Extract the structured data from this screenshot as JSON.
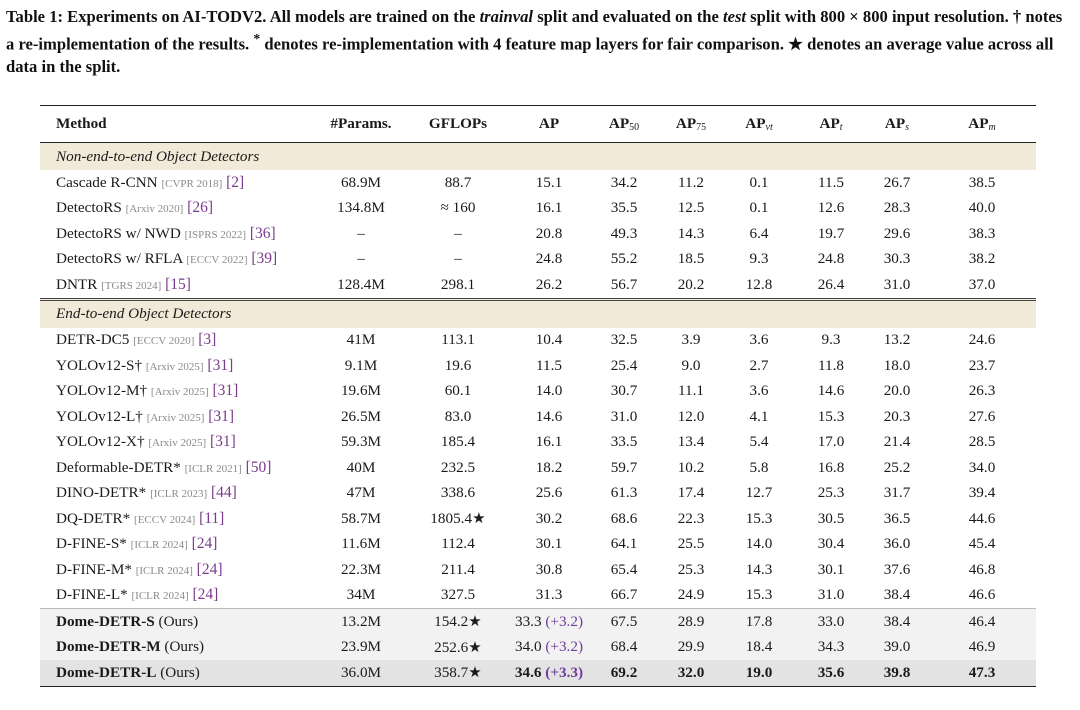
{
  "caption": {
    "part1": "Table 1: Experiments on AI-TODV2. All models are trained on the ",
    "split_train": "trainval",
    "part2": " split and evaluated on the ",
    "split_test": "test",
    "part3": " split with 800 × 800 input resolution. † notes a re-implementation of the results. ",
    "star_mark": "*",
    "part4": " denotes re-implementation with 4 feature map layers for fair comparison. ",
    "avg_mark": "★",
    "part5": " denotes an average value across all data in the split."
  },
  "header": {
    "method": "Method",
    "params": "#Params.",
    "gflops": "GFLOPs",
    "ap": "AP",
    "ap50_base": "AP",
    "ap50_sub": "50",
    "ap75_base": "AP",
    "ap75_sub": "75",
    "apvt_base": "AP",
    "apvt_sub": "vt",
    "apt_base": "AP",
    "apt_sub": "t",
    "aps_base": "AP",
    "aps_sub": "s",
    "apm_base": "AP",
    "apm_sub": "m"
  },
  "sections": {
    "non_end_to_end": "Non-end-to-end Object Detectors",
    "end_to_end": "End-to-end Object Detectors"
  },
  "rows": [
    {
      "method": "Cascade R-CNN",
      "venue": "[CVPR 2018]",
      "ref": "[2]",
      "params": "68.9M",
      "gflops": "88.7",
      "ap": "15.1",
      "ap50": "34.2",
      "ap75": "11.2",
      "apvt": "0.1",
      "apt": "11.5",
      "aps": "26.7",
      "apm": "38.5"
    },
    {
      "method": "DetectoRS",
      "venue": "[Arxiv 2020]",
      "ref": "[26]",
      "params": "134.8M",
      "gflops": "≈ 160",
      "ap": "16.1",
      "ap50": "35.5",
      "ap75": "12.5",
      "apvt": "0.1",
      "apt": "12.6",
      "aps": "28.3",
      "apm": "40.0"
    },
    {
      "method": "DetectoRS w/ NWD",
      "venue": "[ISPRS 2022]",
      "ref": "[36]",
      "params": "–",
      "gflops": "–",
      "ap": "20.8",
      "ap50": "49.3",
      "ap75": "14.3",
      "apvt": "6.4",
      "apt": "19.7",
      "aps": "29.6",
      "apm": "38.3"
    },
    {
      "method": "DetectoRS w/ RFLA",
      "venue": "[ECCV 2022]",
      "ref": "[39]",
      "params": "–",
      "gflops": "–",
      "ap": "24.8",
      "ap50": "55.2",
      "ap75": "18.5",
      "apvt": "9.3",
      "apt": "24.8",
      "aps": "30.3",
      "apm": "38.2"
    },
    {
      "method": "DNTR",
      "venue": "[TGRS 2024]",
      "ref": "[15]",
      "params": "128.4M",
      "gflops": "298.1",
      "ap": "26.2",
      "ap50": "56.7",
      "ap75": "20.2",
      "apvt": "12.8",
      "apt": "26.4",
      "aps": "31.0",
      "apm": "37.0"
    },
    {
      "method": "DETR-DC5",
      "venue": "[ECCV 2020]",
      "ref": "[3]",
      "params": "41M",
      "gflops": "113.1",
      "ap": "10.4",
      "ap50": "32.5",
      "ap75": "3.9",
      "apvt": "3.6",
      "apt": "9.3",
      "aps": "13.2",
      "apm": "24.6"
    },
    {
      "method": "YOLOv12-S†",
      "venue": "[Arxiv 2025]",
      "ref": "[31]",
      "params": "9.1M",
      "gflops": "19.6",
      "ap": "11.5",
      "ap50": "25.4",
      "ap75": "9.0",
      "apvt": "2.7",
      "apt": "11.8",
      "aps": "18.0",
      "apm": "23.7"
    },
    {
      "method": "YOLOv12-M†",
      "venue": "[Arxiv 2025]",
      "ref": "[31]",
      "params": "19.6M",
      "gflops": "60.1",
      "ap": "14.0",
      "ap50": "30.7",
      "ap75": "11.1",
      "apvt": "3.6",
      "apt": "14.6",
      "aps": "20.0",
      "apm": "26.3"
    },
    {
      "method": "YOLOv12-L†",
      "venue": "[Arxiv 2025]",
      "ref": "[31]",
      "params": "26.5M",
      "gflops": "83.0",
      "ap": "14.6",
      "ap50": "31.0",
      "ap75": "12.0",
      "apvt": "4.1",
      "apt": "15.3",
      "aps": "20.3",
      "apm": "27.6"
    },
    {
      "method": "YOLOv12-X†",
      "venue": "[Arxiv 2025]",
      "ref": "[31]",
      "params": "59.3M",
      "gflops": "185.4",
      "ap": "16.1",
      "ap50": "33.5",
      "ap75": "13.4",
      "apvt": "5.4",
      "apt": "17.0",
      "aps": "21.4",
      "apm": "28.5"
    },
    {
      "method": "Deformable-DETR*",
      "venue": "[ICLR 2021]",
      "ref": "[50]",
      "params": "40M",
      "gflops": "232.5",
      "ap": "18.2",
      "ap50": "59.7",
      "ap75": "10.2",
      "apvt": "5.8",
      "apt": "16.8",
      "aps": "25.2",
      "apm": "34.0"
    },
    {
      "method": "DINO-DETR*",
      "venue": "[ICLR 2023]",
      "ref": "[44]",
      "params": "47M",
      "gflops": "338.6",
      "ap": "25.6",
      "ap50": "61.3",
      "ap75": "17.4",
      "apvt": "12.7",
      "apt": "25.3",
      "aps": "31.7",
      "apm": "39.4"
    },
    {
      "method": "DQ-DETR*",
      "venue": "[ECCV 2024]",
      "ref": "[11]",
      "params": "58.7M",
      "gflops": "1805.4★",
      "ap": "30.2",
      "ap50": "68.6",
      "ap75": "22.3",
      "apvt": "15.3",
      "apt": "30.5",
      "aps": "36.5",
      "apm": "44.6"
    },
    {
      "method": "D-FINE-S*",
      "venue": "[ICLR 2024]",
      "ref": "[24]",
      "params": "11.6M",
      "gflops": "112.4",
      "ap": "30.1",
      "ap50": "64.1",
      "ap75": "25.5",
      "apvt": "14.0",
      "apt": "30.4",
      "aps": "36.0",
      "apm": "45.4"
    },
    {
      "method": "D-FINE-M*",
      "venue": "[ICLR 2024]",
      "ref": "[24]",
      "params": "22.3M",
      "gflops": "211.4",
      "ap": "30.8",
      "ap50": "65.4",
      "ap75": "25.3",
      "apvt": "14.3",
      "apt": "30.1",
      "aps": "37.6",
      "apm": "46.8"
    },
    {
      "method": "D-FINE-L*",
      "venue": "[ICLR 2024]",
      "ref": "[24]",
      "params": "34M",
      "gflops": "327.5",
      "ap": "31.3",
      "ap50": "66.7",
      "ap75": "24.9",
      "apvt": "15.3",
      "apt": "31.0",
      "aps": "38.4",
      "apm": "46.6"
    }
  ],
  "ours": [
    {
      "method": "Dome-DETR-S",
      "suffix": " (Ours)",
      "params": "13.2M",
      "gflops": "154.2★",
      "ap": "33.3",
      "delta": "(+3.2)",
      "ap50": "67.5",
      "ap75": "28.9",
      "apvt": "17.8",
      "apt": "33.0",
      "aps": "38.4",
      "apm": "46.4"
    },
    {
      "method": "Dome-DETR-M",
      "suffix": " (Ours)",
      "params": "23.9M",
      "gflops": "252.6★",
      "ap": "34.0",
      "delta": "(+3.2)",
      "ap50": "68.4",
      "ap75": "29.9",
      "apvt": "18.4",
      "apt": "34.3",
      "aps": "39.0",
      "apm": "46.9"
    },
    {
      "method": "Dome-DETR-L",
      "suffix": " (Ours)",
      "params": "36.0M",
      "gflops": "358.7★",
      "ap": "34.6",
      "delta": "(+3.3)",
      "ap50": "69.2",
      "ap75": "32.0",
      "apvt": "19.0",
      "apt": "35.6",
      "aps": "39.8",
      "apm": "47.3"
    }
  ]
}
